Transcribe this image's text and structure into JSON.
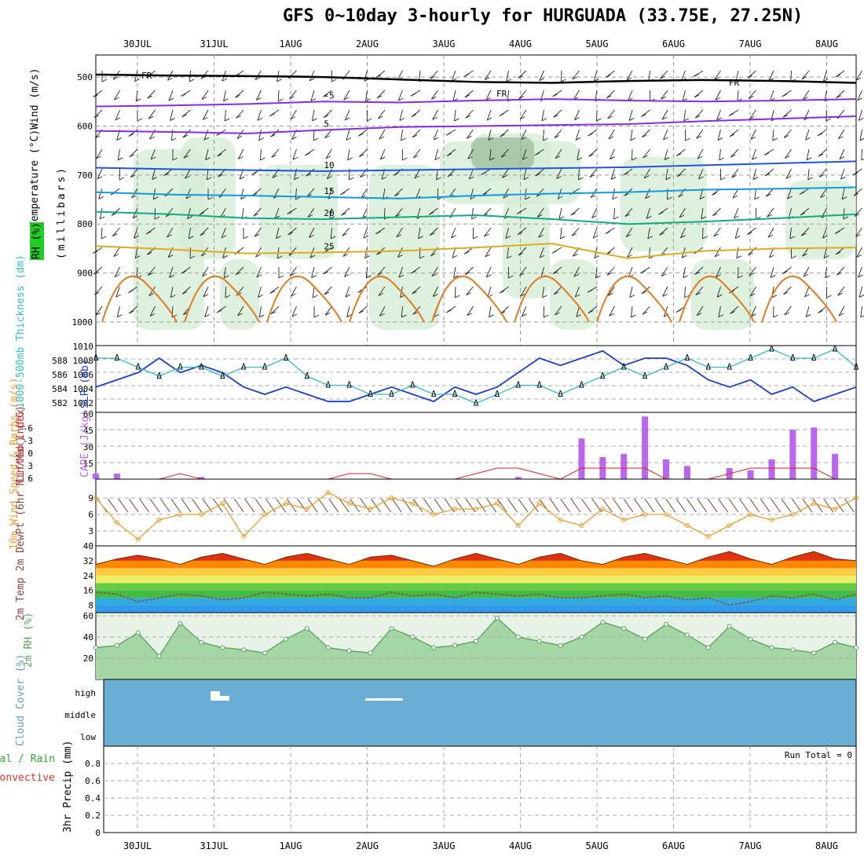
{
  "title": "GFS 0~10day 3-hourly for HURGUADA (33.75E, 27.25N)",
  "dates": [
    "30JUL",
    "31JUL",
    "1AUG",
    "2AUG",
    "3AUG",
    "4AUG",
    "5AUG",
    "6AUG",
    "7AUG",
    "8AUG"
  ],
  "colors": {
    "rh": "#5aa05a",
    "slp": "#1c3fc8",
    "thickness": "#33bcc2",
    "cape": "#bb66ee",
    "li": "#dd2222",
    "wind": "#e8a030",
    "barb": "#6b4423",
    "temp": "#e05010",
    "dew": "#2a8a2a",
    "cloud": "#6aaed6",
    "precip_total": "#33aa33",
    "precip_conv": "#dd3333"
  },
  "panels": {
    "upper": {
      "ylabels": [
        "Wind",
        "(m/s)",
        "Temperature",
        "(°C)",
        "RH",
        "(%)",
        "(millibars)"
      ],
      "ticks": [
        "500",
        "600",
        "700",
        "800",
        "900",
        "1000"
      ],
      "contours": [
        {
          "name": "-5",
          "pressure": [
            560,
            558,
            555,
            550,
            552,
            548,
            545,
            548,
            550,
            548,
            545
          ]
        },
        {
          "name": "5",
          "pressure": [
            610,
            612,
            615,
            608,
            602,
            600,
            598,
            596,
            590,
            585,
            580
          ]
        },
        {
          "name": "10",
          "pressure": [
            685,
            688,
            690,
            692,
            690,
            688,
            686,
            684,
            680,
            676,
            672
          ]
        },
        {
          "name": "15",
          "pressure": [
            735,
            740,
            742,
            745,
            748,
            742,
            738,
            735,
            730,
            728,
            725
          ]
        },
        {
          "name": "20",
          "pressure": [
            775,
            780,
            788,
            790,
            786,
            782,
            790,
            800,
            795,
            788,
            780
          ]
        },
        {
          "name": "25",
          "pressure": [
            845,
            852,
            860,
            858,
            855,
            848,
            840,
            870,
            855,
            850,
            848
          ]
        }
      ],
      "fr_label": "FR",
      "fr_pressure": [
        495,
        497,
        498,
        500,
        505,
        510,
        512,
        508,
        506,
        508,
        512
      ]
    },
    "slp": {
      "ylabel_left": "1000-500mb Thickness (dm)",
      "ylabel_right": "SLP (mb)",
      "ticks_left": [
        "582",
        "584",
        "586",
        "588"
      ],
      "ticks_right": [
        "1002",
        "1004",
        "1006",
        "1008",
        "1010"
      ],
      "slp_values": [
        1004,
        1005,
        1006,
        1008,
        1006,
        1007,
        1006,
        1004,
        1003,
        1004,
        1003,
        1002,
        1002,
        1003,
        1004,
        1003,
        1002,
        1004,
        1003,
        1004,
        1006,
        1008,
        1007,
        1008,
        1009,
        1007,
        1008,
        1008,
        1007,
        1005,
        1004,
        1005,
        1003,
        1004,
        1002,
        1003,
        1004
      ],
      "thk_values": [
        587,
        587,
        586,
        585,
        586,
        586,
        585,
        586,
        586,
        587,
        585,
        584,
        584,
        583,
        583,
        584,
        583,
        583,
        582,
        583,
        584,
        584,
        583,
        584,
        585,
        586,
        585,
        586,
        587,
        586,
        586,
        587,
        588,
        587,
        587,
        588,
        586
      ]
    },
    "cape": {
      "ylabel_left": "Lifted Index",
      "ylabel_right": "CAPE (J/kg)",
      "ticks_left": [
        "-6",
        "-3",
        "0",
        "3",
        "6"
      ],
      "ticks_right": [
        "15",
        "30",
        "45",
        "60"
      ],
      "cape_values": [
        5,
        5,
        0,
        0,
        0,
        2,
        0,
        0,
        0,
        0,
        0,
        0,
        0,
        0,
        0,
        0,
        0,
        0,
        0,
        0,
        2,
        0,
        0,
        37,
        20,
        23,
        57,
        18,
        12,
        0,
        10,
        8,
        18,
        45,
        47,
        23,
        0
      ],
      "li_values": [
        6,
        6,
        6,
        6,
        5,
        6,
        6,
        6,
        6,
        6,
        6,
        6,
        5,
        5,
        6,
        6,
        6,
        6,
        5,
        4,
        4,
        5,
        6,
        4,
        4,
        4,
        4,
        6,
        6,
        6,
        5,
        4,
        4,
        4,
        4,
        6,
        6
      ]
    },
    "wind": {
      "ylabel": "10m Wind Speed & Barbs (m/s)",
      "ticks": [
        "3",
        "6",
        "9"
      ],
      "values": [
        9,
        4.5,
        1.5,
        5,
        6,
        6,
        8,
        2,
        6,
        8,
        7,
        10,
        8,
        7,
        9,
        8,
        6,
        7,
        7,
        8,
        4,
        8,
        5,
        4,
        7,
        5,
        6,
        6,
        4,
        2,
        4,
        6,
        5,
        6,
        8,
        7,
        9
      ]
    },
    "temp": {
      "ylabel": "2m Temp 2m DewPt (6hr Min/Max) (°C)",
      "ticks": [
        "8",
        "16",
        "24",
        "32",
        "40"
      ],
      "temp_values": [
        30,
        33,
        35,
        33,
        30,
        34,
        36,
        33,
        30,
        34,
        36,
        33,
        30,
        34,
        35,
        32,
        29,
        33,
        36,
        33,
        30,
        34,
        36,
        32,
        30,
        34,
        36,
        33,
        30,
        34,
        37,
        33,
        30,
        34,
        37,
        33,
        32
      ],
      "dew_values": [
        15,
        14,
        10,
        12,
        14,
        13,
        11,
        12,
        15,
        14,
        13,
        14,
        12,
        12,
        15,
        13,
        14,
        12,
        15,
        14,
        13,
        14,
        12,
        12,
        13,
        14,
        12,
        13,
        11,
        12,
        8,
        10,
        13,
        12,
        14,
        11,
        14
      ]
    },
    "rh2m": {
      "ylabel": "2m RH (%)",
      "ticks": [
        "20",
        "40",
        "60"
      ],
      "values": [
        30,
        32,
        44,
        22,
        53,
        35,
        30,
        28,
        25,
        38,
        48,
        30,
        27,
        25,
        48,
        40,
        30,
        32,
        36,
        58,
        40,
        36,
        32,
        40,
        54,
        48,
        38,
        52,
        42,
        30,
        50,
        38,
        30,
        28,
        25,
        35,
        30
      ]
    },
    "cloud": {
      "ylabel": "Cloud Cover (%)",
      "levels": [
        "high",
        "middle",
        "low"
      ]
    },
    "precip": {
      "ylabel": "3hr Precip (mm)",
      "legend_total": "Total / Rain",
      "legend_conv": "Convective",
      "run_total": "Run Total = 0",
      "ticks": [
        "0",
        "0.2",
        "0.4",
        "0.6",
        "0.8"
      ]
    }
  },
  "chart_data": [
    {
      "type": "line",
      "title": "GFS 0~10day 3-hourly for HURGUADA (33.75E, 27.25N)",
      "xlabel": "",
      "ylabel": "millibars",
      "categories": [
        "30JUL",
        "31JUL",
        "1AUG",
        "2AUG",
        "3AUG",
        "4AUG",
        "5AUG",
        "6AUG",
        "7AUG",
        "8AUG"
      ],
      "ylim": [
        1000,
        450
      ]
    },
    {
      "type": "line",
      "ylabel": "SLP (mb)",
      "ylim": [
        1001,
        1010
      ]
    },
    {
      "type": "bar",
      "ylabel": "CAPE (J/kg)",
      "ylim": [
        0,
        60
      ]
    },
    {
      "type": "line",
      "ylabel": "10m Wind Speed (m/s)",
      "ylim": [
        0,
        11
      ]
    },
    {
      "type": "area",
      "ylabel": "2m Temp (°C)",
      "ylim": [
        4,
        40
      ]
    },
    {
      "type": "area",
      "ylabel": "2m RH (%)",
      "ylim": [
        0,
        60
      ]
    },
    {
      "type": "bar",
      "ylabel": "3hr Precip (mm)",
      "ylim": [
        0,
        1
      ]
    }
  ]
}
